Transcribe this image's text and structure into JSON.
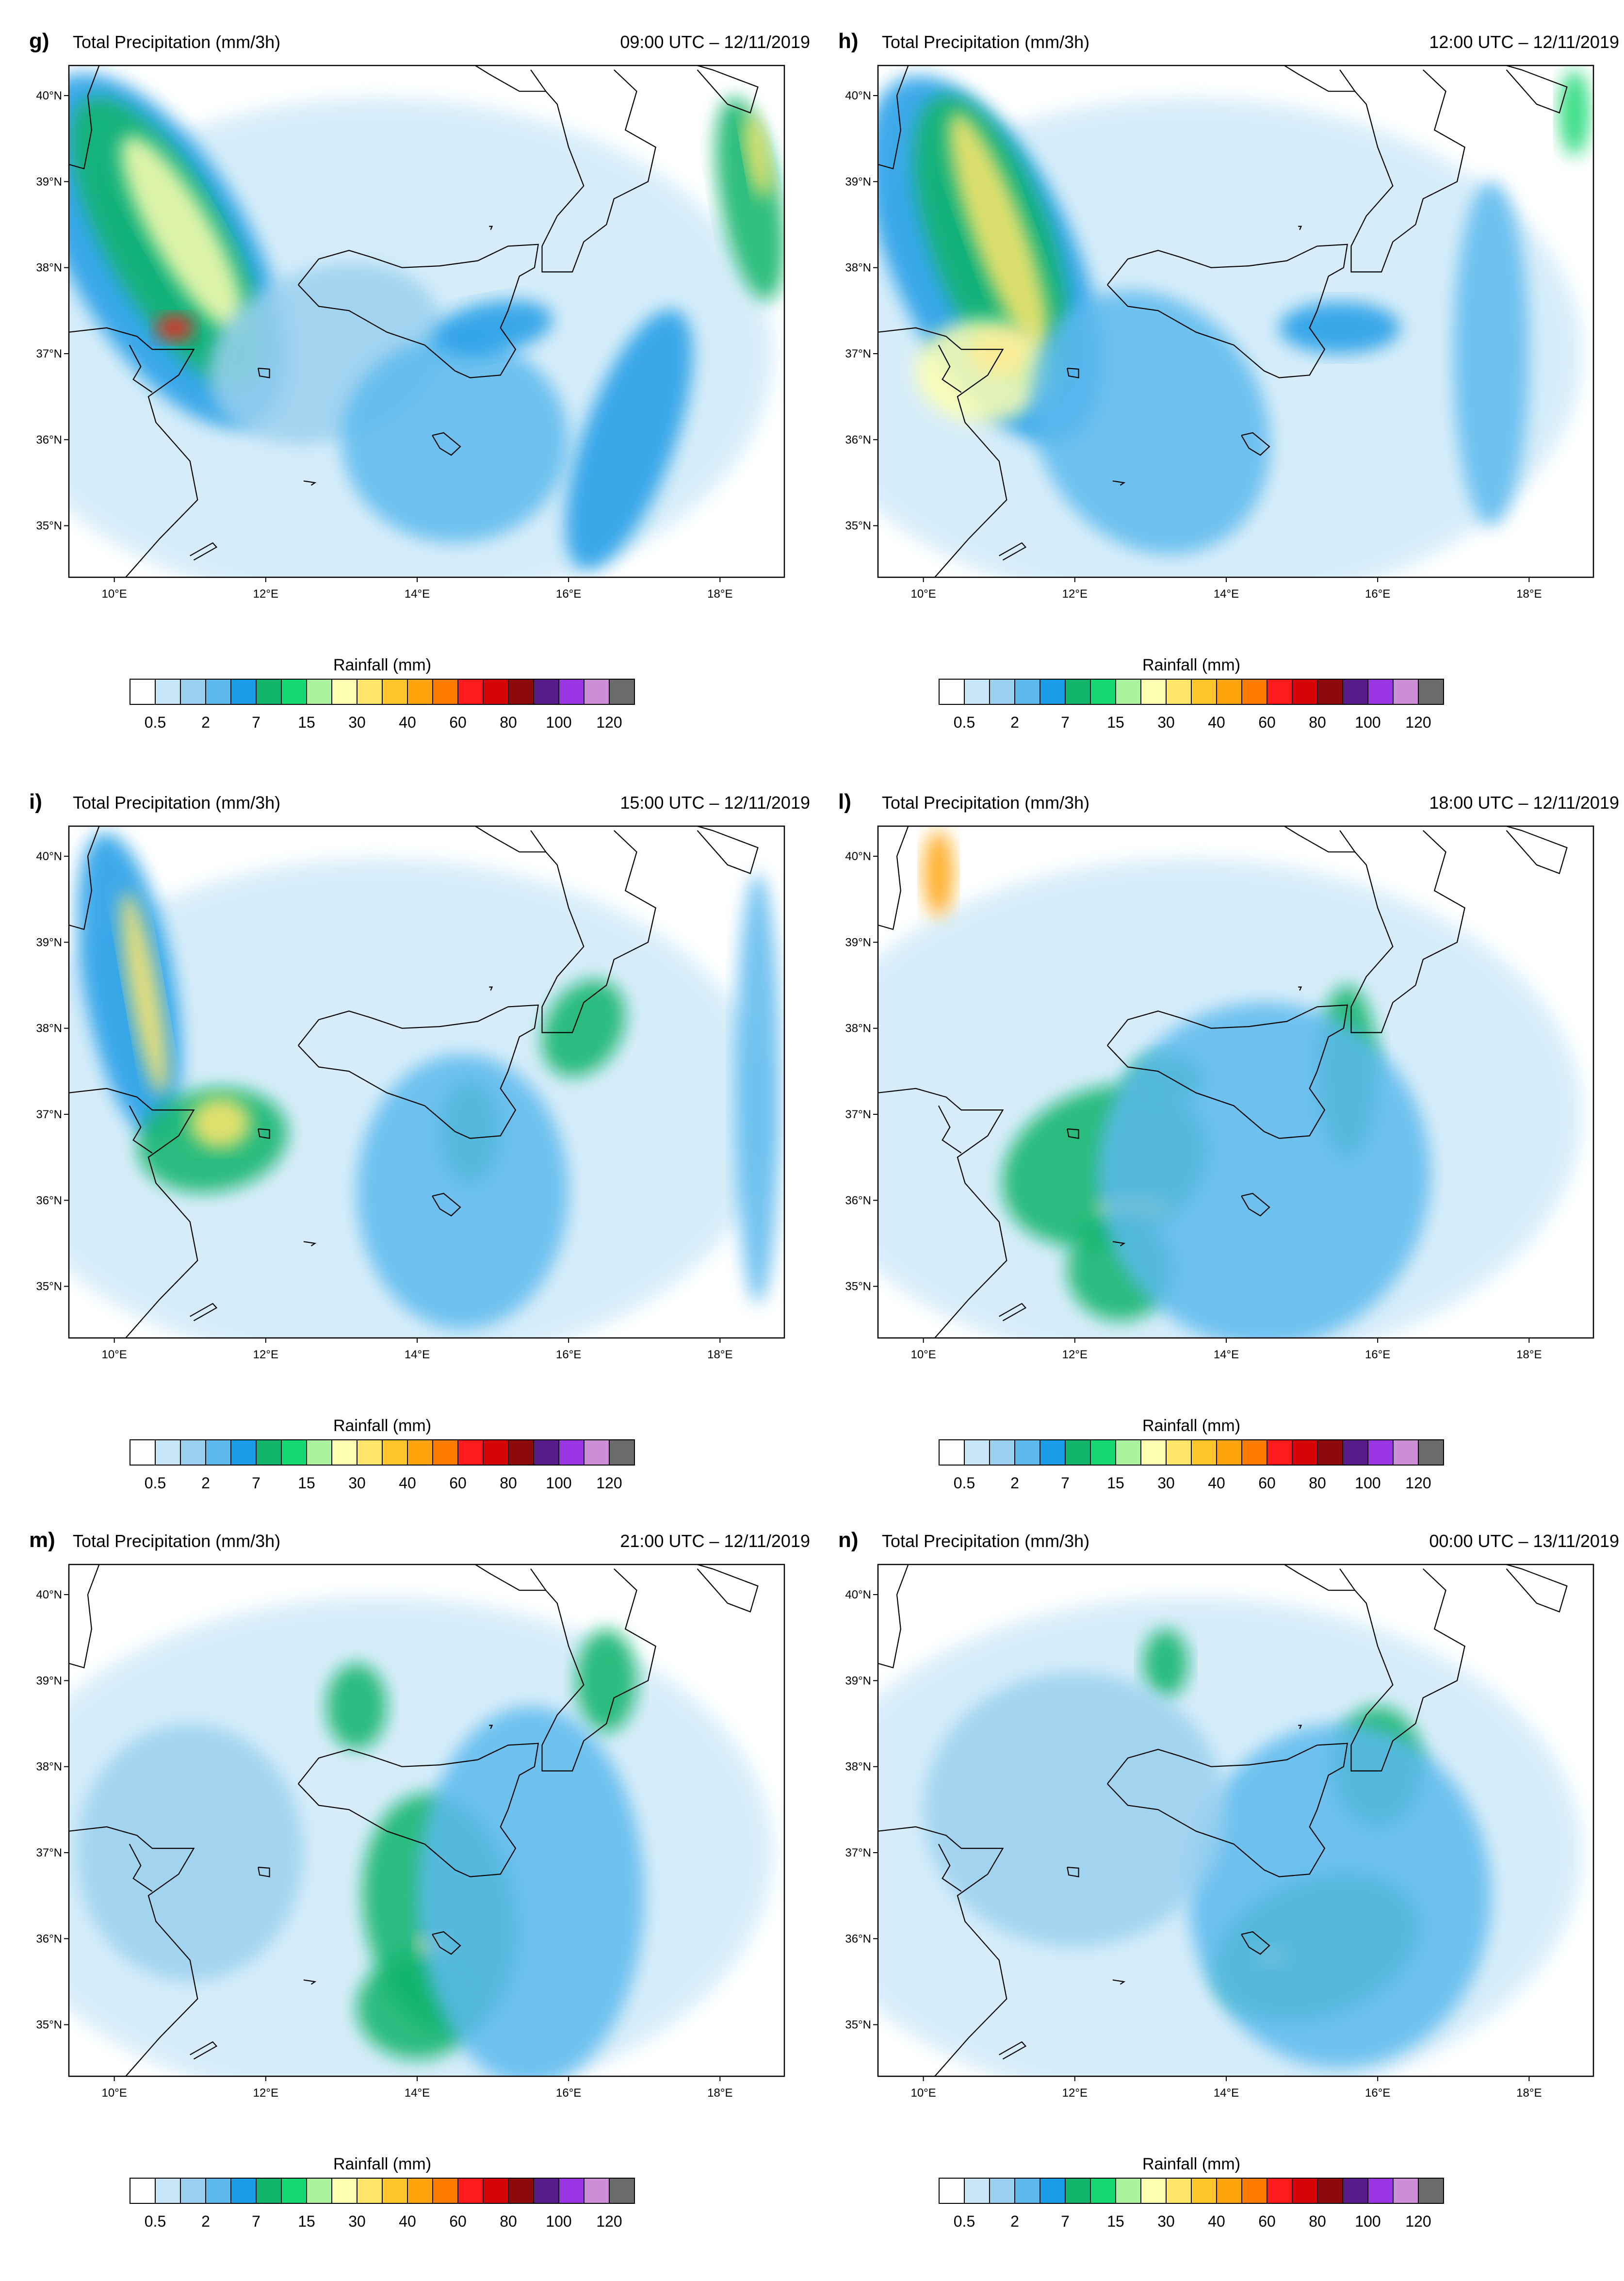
{
  "figure": {
    "product_title": "Total Precipitation (mm/3h)",
    "colorbar_title": "Rainfall  (mm)",
    "colorbar_colors": [
      "#ffffff",
      "#c6e6f7",
      "#9ad0ef",
      "#5bb9ee",
      "#1a9be6",
      "#11b469",
      "#14d871",
      "#a9f39d",
      "#ffffb0",
      "#ffe66a",
      "#ffc52a",
      "#ffa40d",
      "#ff7a00",
      "#ff1b1b",
      "#d40404",
      "#8e0a0a",
      "#5a1c8a",
      "#9a35e4",
      "#cc8fd6",
      "#6b6b6b"
    ],
    "colorbar_ticks": [
      "0.5",
      "2",
      "7",
      "15",
      "30",
      "40",
      "60",
      "80",
      "100",
      "120"
    ],
    "lat_labels": [
      "40°N",
      "39°N",
      "38°N",
      "37°N",
      "36°N",
      "35°N"
    ],
    "lon_labels": [
      "10°E",
      "12°E",
      "14°E",
      "16°E",
      "18°E"
    ]
  },
  "panels": [
    {
      "letter": "g)",
      "time": "09:00 UTC – 12/11/2019",
      "scheme": "g"
    },
    {
      "letter": "h)",
      "time": "12:00 UTC – 12/11/2019",
      "scheme": "h"
    },
    {
      "letter": "i)",
      "time": "15:00 UTC – 12/11/2019",
      "scheme": "i"
    },
    {
      "letter": "l)",
      "time": "18:00 UTC – 12/11/2019",
      "scheme": "l"
    },
    {
      "letter": "m)",
      "time": "21:00 UTC – 12/11/2019",
      "scheme": "m"
    },
    {
      "letter": "n)",
      "time": "00:00 UTC – 13/11/2019",
      "scheme": "n"
    }
  ]
}
